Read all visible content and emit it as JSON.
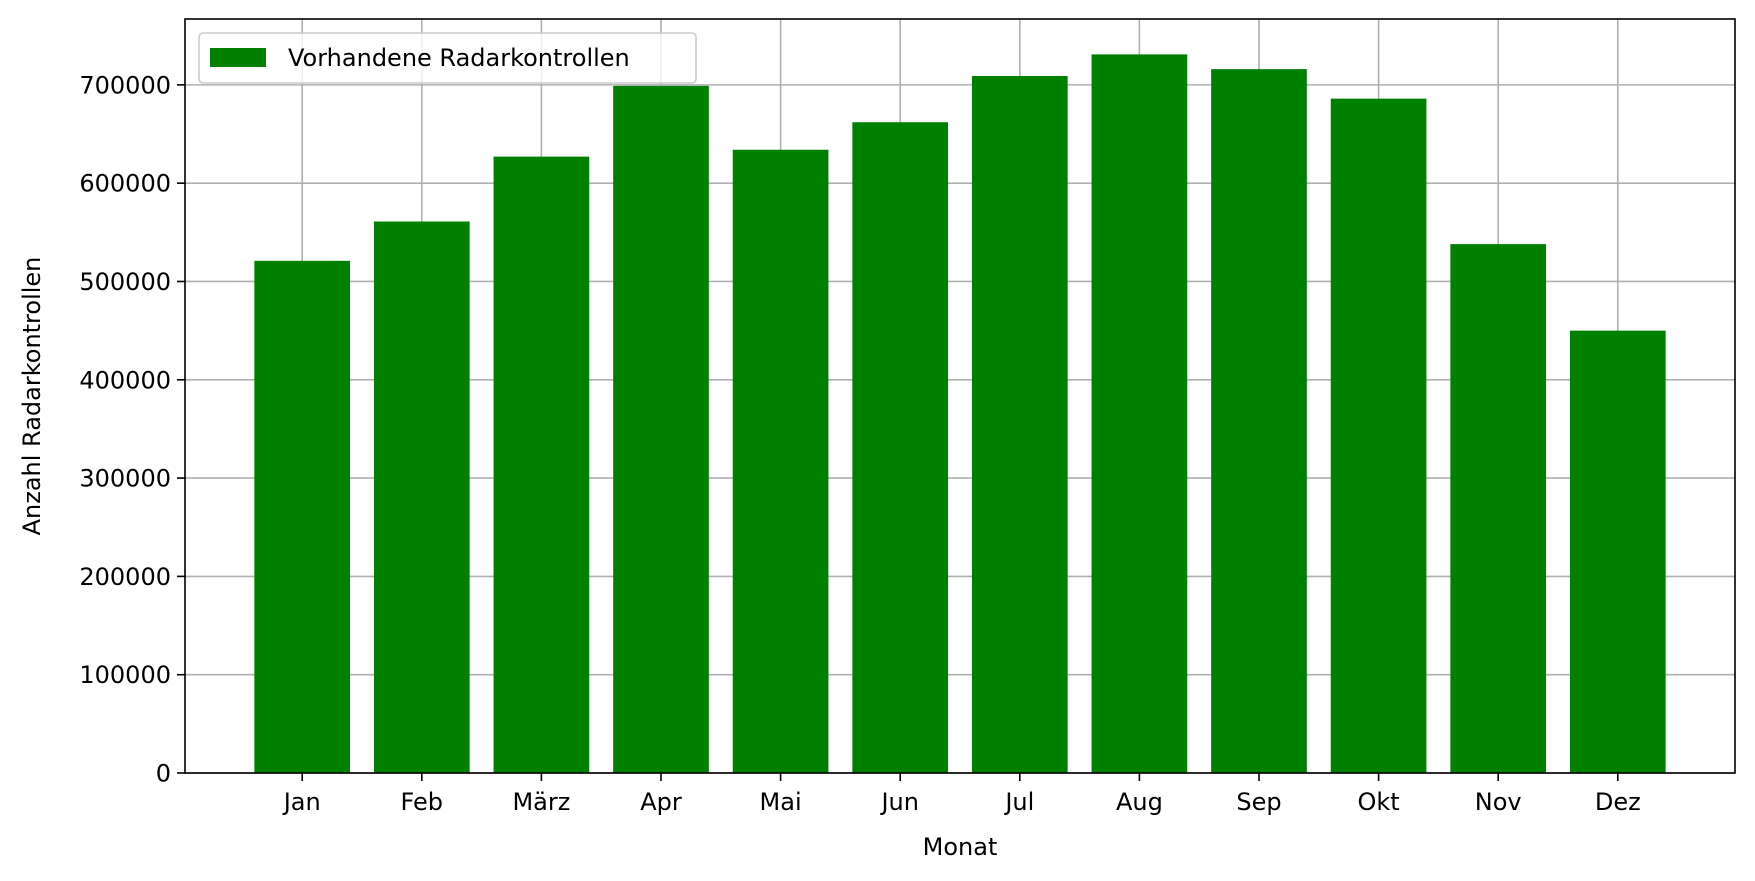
{
  "chart_data": {
    "type": "bar",
    "categories": [
      "Jan",
      "Feb",
      "März",
      "Apr",
      "Mai",
      "Jun",
      "Jul",
      "Aug",
      "Sep",
      "Okt",
      "Nov",
      "Dez"
    ],
    "series": [
      {
        "name": "Vorhandene Radarkontrollen",
        "color": "#008000",
        "values": [
          521000,
          561000,
          627000,
          699000,
          634000,
          662000,
          709000,
          731000,
          716000,
          686000,
          538000,
          450000
        ]
      }
    ],
    "xlabel": "Monat",
    "ylabel": "Anzahl Radarkontrollen",
    "ylim": [
      0,
      767000
    ],
    "yticks": [
      0,
      100000,
      200000,
      300000,
      400000,
      500000,
      600000,
      700000
    ],
    "grid": true,
    "legend_position": "top-left"
  }
}
